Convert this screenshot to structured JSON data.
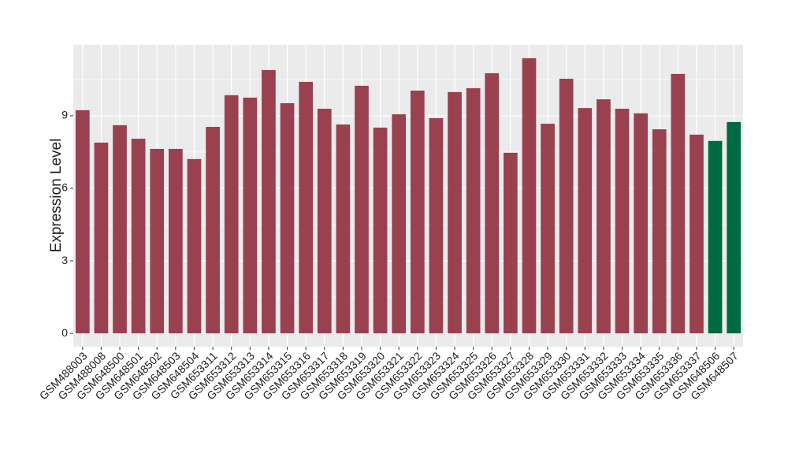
{
  "chart_data": {
    "type": "bar",
    "y_label": "Expression Level",
    "categories": [
      "GSM488003",
      "GSM488008",
      "GSM648500",
      "GSM648501",
      "GSM648502",
      "GSM648503",
      "GSM648504",
      "GSM653311",
      "GSM653312",
      "GSM653313",
      "GSM653314",
      "GSM653315",
      "GSM653316",
      "GSM653317",
      "GSM653318",
      "GSM653319",
      "GSM653320",
      "GSM653321",
      "GSM653322",
      "GSM653323",
      "GSM653324",
      "GSM653325",
      "GSM653326",
      "GSM653327",
      "GSM653328",
      "GSM653329",
      "GSM653330",
      "GSM653331",
      "GSM653332",
      "GSM653333",
      "GSM653334",
      "GSM653335",
      "GSM653336",
      "GSM653337",
      "GSM648506",
      "GSM648507"
    ],
    "values": [
      9.23,
      7.89,
      8.61,
      8.05,
      7.63,
      7.63,
      7.21,
      8.54,
      9.85,
      9.75,
      10.89,
      9.52,
      10.4,
      9.29,
      8.64,
      10.24,
      8.51,
      9.06,
      10.04,
      8.9,
      9.98,
      10.14,
      10.76,
      7.47,
      11.38,
      8.67,
      10.53,
      9.32,
      9.68,
      9.29,
      9.1,
      8.44,
      10.73,
      8.22,
      7.96,
      8.74
    ],
    "colors": [
      "#9a4150",
      "#9a4150",
      "#9a4150",
      "#9a4150",
      "#9a4150",
      "#9a4150",
      "#9a4150",
      "#9a4150",
      "#9a4150",
      "#9a4150",
      "#9a4150",
      "#9a4150",
      "#9a4150",
      "#9a4150",
      "#9a4150",
      "#9a4150",
      "#9a4150",
      "#9a4150",
      "#9a4150",
      "#9a4150",
      "#9a4150",
      "#9a4150",
      "#9a4150",
      "#9a4150",
      "#9a4150",
      "#9a4150",
      "#9a4150",
      "#9a4150",
      "#9a4150",
      "#9a4150",
      "#9a4150",
      "#9a4150",
      "#9a4150",
      "#9a4150",
      "#006a43",
      "#006a43"
    ],
    "ylim": [
      -0.55,
      11.93
    ],
    "yticks": [
      0,
      3,
      6,
      9
    ],
    "grid": true
  }
}
